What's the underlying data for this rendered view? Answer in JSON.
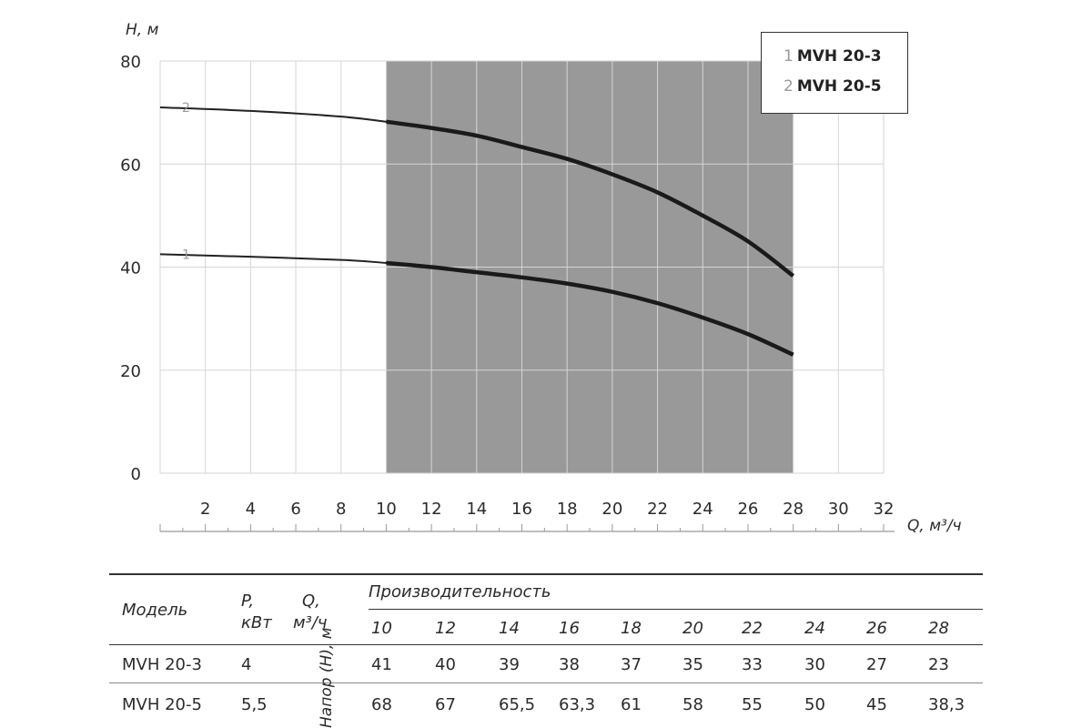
{
  "chart_data": {
    "type": "line",
    "ylabel": "H, м",
    "xlabel": "Q, м³/ч",
    "xlim": [
      0,
      32
    ],
    "ylim": [
      0,
      80
    ],
    "x_ticks": [
      "2",
      "4",
      "6",
      "8",
      "10",
      "12",
      "14",
      "16",
      "18",
      "20",
      "22",
      "24",
      "26",
      "28",
      "30",
      "32"
    ],
    "y_ticks": [
      "0",
      "20",
      "40",
      "60",
      "80"
    ],
    "shaded_region_x": [
      10,
      28
    ],
    "grid": true,
    "legend_position": "top-right",
    "series": [
      {
        "name": "MVH 20-3",
        "label": "1",
        "x": [
          0,
          4,
          8,
          10,
          12,
          14,
          16,
          18,
          20,
          22,
          24,
          26,
          28
        ],
        "y": [
          42.5,
          42,
          41.4,
          40.8,
          40,
          39,
          38,
          36.8,
          35.2,
          33,
          30.2,
          27,
          23
        ]
      },
      {
        "name": "MVH 20-5",
        "label": "2",
        "x": [
          0,
          4,
          8,
          10,
          12,
          14,
          16,
          18,
          20,
          22,
          24,
          26,
          28
        ],
        "y": [
          71,
          70.3,
          69.2,
          68.2,
          67,
          65.5,
          63.3,
          61,
          58,
          54.5,
          50,
          45,
          38.3
        ]
      }
    ]
  },
  "legend": {
    "items": [
      {
        "num": "1",
        "label": "MVH 20-3"
      },
      {
        "num": "2",
        "label": "MVH 20-5"
      }
    ]
  },
  "table": {
    "col_model": "Модель",
    "col_power_1": "P,",
    "col_power_2": "кВт",
    "col_flow_1": "Q,",
    "col_flow_2": "м³/ч",
    "col_perf": "Производительность",
    "head_label": "Напор (Н), м",
    "flows": [
      "10",
      "12",
      "14",
      "16",
      "18",
      "20",
      "22",
      "24",
      "26",
      "28"
    ],
    "rows": [
      {
        "model": "MVH 20-3",
        "power": "4",
        "values": [
          "41",
          "40",
          "39",
          "38",
          "37",
          "35",
          "33",
          "30",
          "27",
          "23"
        ]
      },
      {
        "model": "MVH 20-5",
        "power": "5,5",
        "values": [
          "68",
          "67",
          "65,5",
          "63,3",
          "61",
          "58",
          "55",
          "50",
          "45",
          "38,3"
        ]
      }
    ]
  }
}
